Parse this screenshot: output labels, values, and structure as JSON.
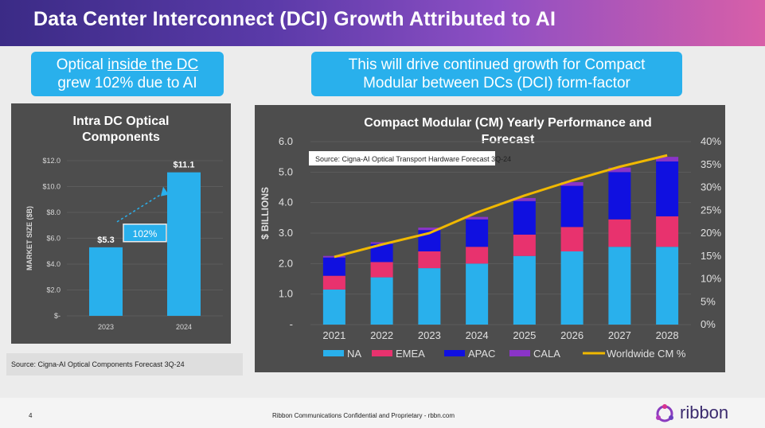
{
  "header": {
    "title": "Data Center Interconnect (DCI) Growth Attributed to AI"
  },
  "callout_left": {
    "pre": "Optical ",
    "underlined": "inside the DC",
    "line2": "grew 102% due to AI"
  },
  "callout_right": {
    "line1": "This will drive continued growth for Compact",
    "line2": "Modular between DCs (DCI) form-factor"
  },
  "footer": {
    "page_number": "4",
    "confidential": "Ribbon Communications Confidential and Proprietary - rbbn.com",
    "logo": "ribbon"
  },
  "colors": {
    "bar_blue": "#29b0ec",
    "na": "#29b0ec",
    "emea": "#e8326e",
    "apac": "#1010e0",
    "cala": "#8a34c8",
    "worldwide": "#f0b800",
    "callout": "#29b0ec",
    "panel": "#4d4d4d"
  },
  "chart_data": [
    {
      "type": "bar",
      "title_line1": "Intra DC Optical",
      "title_line2": "Components",
      "ylabel": "MARKET SIZE ($B)",
      "categories": [
        "2023",
        "2024"
      ],
      "values": [
        5.3,
        11.1
      ],
      "value_labels": [
        "$5.3",
        "$11.1"
      ],
      "ylim": [
        0,
        12
      ],
      "yticks": [
        {
          "v": 0,
          "label": "$-"
        },
        {
          "v": 2,
          "label": "$2.0"
        },
        {
          "v": 4,
          "label": "$4.0"
        },
        {
          "v": 6,
          "label": "$6.0"
        },
        {
          "v": 8,
          "label": "$8.0"
        },
        {
          "v": 10,
          "label": "$10.0"
        },
        {
          "v": 12,
          "label": "$12.0"
        }
      ],
      "growth_label": "102%",
      "source": "Source: Cigna-AI Optical Components Forecast 3Q-24"
    },
    {
      "type": "bar",
      "stacked": true,
      "title_line1": "Compact Modular (CM) Yearly Performance and",
      "title_line2": "Forecast",
      "ylabel": "$ BILLIONS",
      "source": "Source: Cigna-AI Optical Transport Hardware Forecast 3Q-24",
      "categories": [
        "2021",
        "2022",
        "2023",
        "2024",
        "2025",
        "2026",
        "2027",
        "2028"
      ],
      "ylim": [
        0,
        6
      ],
      "yticks": [
        {
          "v": 0,
          "label": "-"
        },
        {
          "v": 1,
          "label": "1.0"
        },
        {
          "v": 2,
          "label": "2.0"
        },
        {
          "v": 3,
          "label": "3.0"
        },
        {
          "v": 4,
          "label": "4.0"
        },
        {
          "v": 5,
          "label": "5.0"
        },
        {
          "v": 6,
          "label": "6.0"
        }
      ],
      "y2lim": [
        0,
        40
      ],
      "y2ticks": [
        {
          "v": 0,
          "label": "0%"
        },
        {
          "v": 5,
          "label": "5%"
        },
        {
          "v": 10,
          "label": "10%"
        },
        {
          "v": 15,
          "label": "15%"
        },
        {
          "v": 20,
          "label": "20%"
        },
        {
          "v": 25,
          "label": "25%"
        },
        {
          "v": 30,
          "label": "30%"
        },
        {
          "v": 35,
          "label": "35%"
        },
        {
          "v": 40,
          "label": "40%"
        }
      ],
      "series": [
        {
          "name": "NA",
          "values": [
            1.15,
            1.55,
            1.85,
            2.0,
            2.25,
            2.4,
            2.55,
            2.55
          ]
        },
        {
          "name": "EMEA",
          "values": [
            0.45,
            0.5,
            0.55,
            0.55,
            0.7,
            0.8,
            0.9,
            1.0
          ]
        },
        {
          "name": "APAC",
          "values": [
            0.6,
            0.6,
            0.7,
            0.9,
            1.1,
            1.35,
            1.55,
            1.8
          ]
        },
        {
          "name": "CALA",
          "values": [
            0.05,
            0.05,
            0.08,
            0.08,
            0.1,
            0.12,
            0.15,
            0.15
          ]
        }
      ],
      "line": {
        "name": "Worldwide CM %",
        "values": [
          14.8,
          17.5,
          20.0,
          24.5,
          28.2,
          31.5,
          34.5,
          37.0
        ]
      }
    }
  ]
}
